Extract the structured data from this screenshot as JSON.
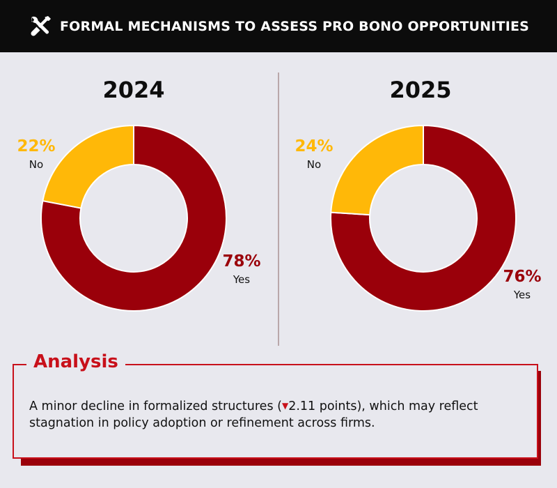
{
  "header": {
    "title": "FORMAL MECHANISMS TO ASSESS PRO BONO OPPORTUNITIES",
    "icon": "tools-icon"
  },
  "colors": {
    "yes": "#9a000a",
    "no": "#ffb808",
    "accent": "#c8101a",
    "header_bg": "#0c0c0c",
    "page_bg": "#e8e8ee"
  },
  "chart_data": [
    {
      "type": "pie",
      "title": "2024",
      "hole": true,
      "slices": [
        {
          "label": "Yes",
          "value": 78,
          "display": "78%",
          "color": "#9a000a"
        },
        {
          "label": "No",
          "value": 22,
          "display": "22%",
          "color": "#ffb808"
        }
      ]
    },
    {
      "type": "pie",
      "title": "2025",
      "hole": true,
      "slices": [
        {
          "label": "Yes",
          "value": 76,
          "display": "76%",
          "color": "#9a000a"
        },
        {
          "label": "No",
          "value": 24,
          "display": "24%",
          "color": "#ffb808"
        }
      ]
    }
  ],
  "analysis": {
    "title": "Analysis",
    "text_before": "A minor decline in formalized structures (",
    "change_icon": "down-triangle-icon",
    "change_symbol": "▼",
    "text_after": "2.11 points), which may reflect stagnation in policy adoption or refinement across firms."
  }
}
